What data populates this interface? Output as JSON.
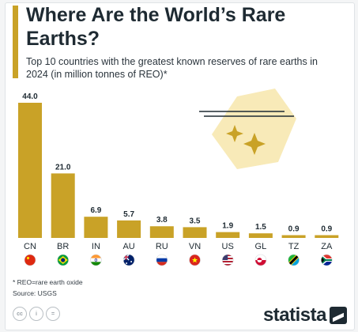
{
  "header": {
    "title": "Where Are the World’s Rare Earths?",
    "subtitle": "Top 10 countries with the greatest known reserves of rare earths in 2024 (in million tonnes of REO)*"
  },
  "footer": {
    "note": "* REO=rare earth oxide",
    "source": "Source: USGS",
    "brand": "statista",
    "license_icons": [
      "cc-icon",
      "info-icon",
      "equal-icon"
    ]
  },
  "colors": {
    "bar": "#c9a227",
    "illustration": "#f8eab8",
    "accent": "#c9a227"
  },
  "chart_data": {
    "type": "bar",
    "title": "Where Are the World’s Rare Earths?",
    "subtitle": "Top 10 countries with the greatest known reserves of rare earths in 2024 (in million tonnes of REO)*",
    "categories": [
      "CN",
      "BR",
      "IN",
      "AU",
      "RU",
      "VN",
      "US",
      "GL",
      "TZ",
      "ZA"
    ],
    "values": [
      44.0,
      21.0,
      6.9,
      5.7,
      3.8,
      3.5,
      1.9,
      1.5,
      0.9,
      0.9
    ],
    "value_labels": [
      "44.0",
      "21.0",
      "6.9",
      "5.7",
      "3.8",
      "3.5",
      "1.9",
      "1.5",
      "0.9",
      "0.9"
    ],
    "flags": [
      "china-flag-icon",
      "brazil-flag-icon",
      "india-flag-icon",
      "australia-flag-icon",
      "russia-flag-icon",
      "vietnam-flag-icon",
      "usa-flag-icon",
      "greenland-flag-icon",
      "tanzania-flag-icon",
      "south-africa-flag-icon"
    ],
    "ylim": [
      0,
      44
    ],
    "grid": false,
    "legend": "none"
  }
}
